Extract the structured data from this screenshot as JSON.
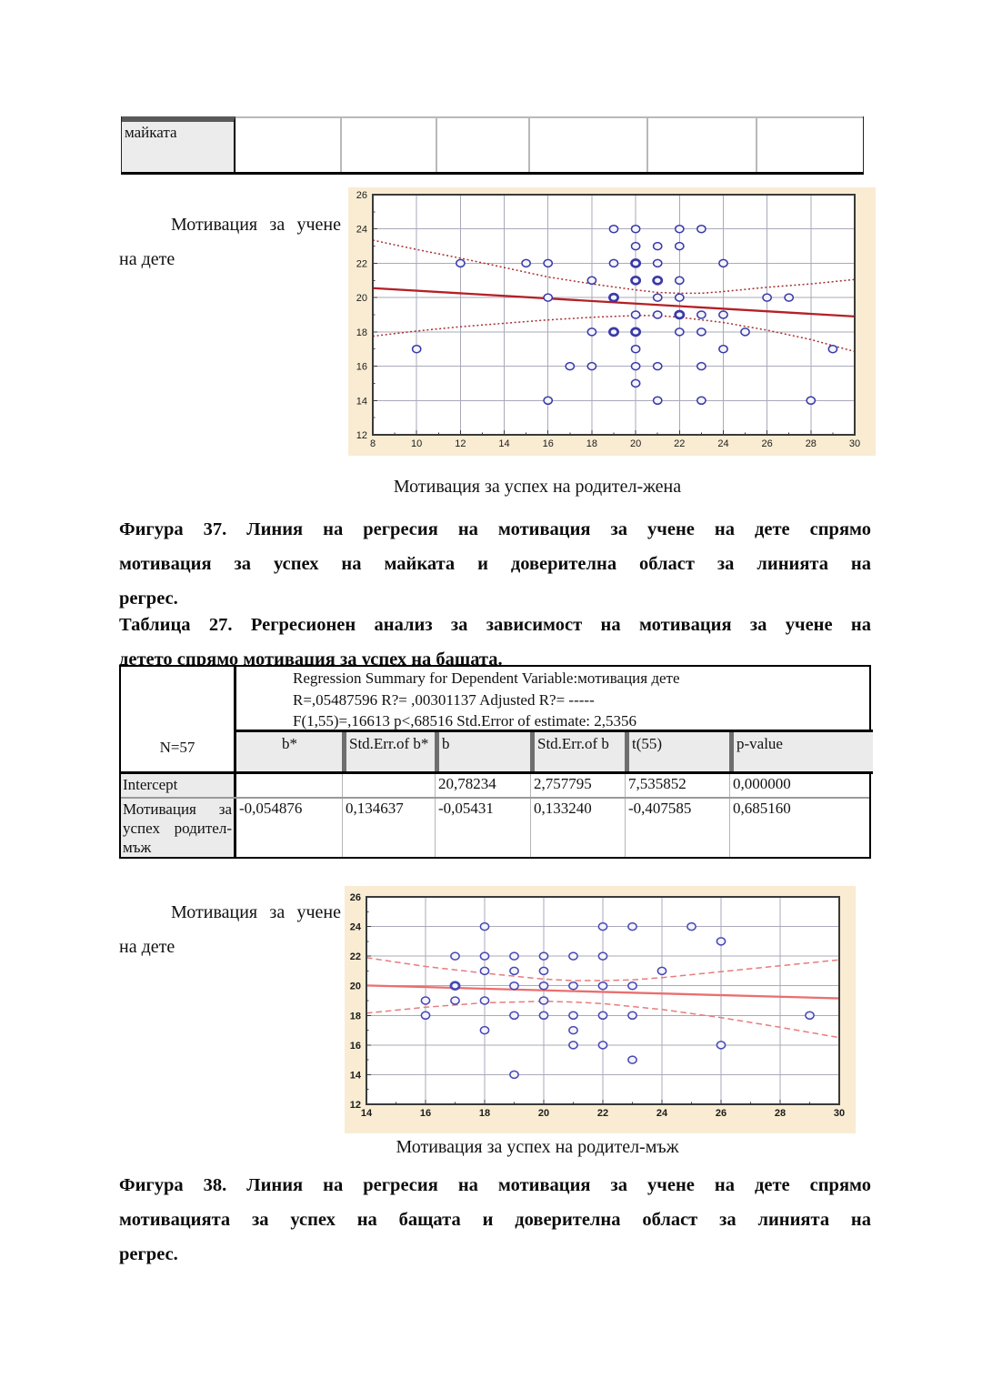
{
  "page": {
    "background": "#ffffff",
    "text_color": "#111111"
  },
  "top_table": {
    "row_label": "майката",
    "empty_cell_count": 6
  },
  "side_label_top": {
    "text": "Мотивация за учене на дете"
  },
  "side_label_bottom": {
    "text": "Мотивация за учене на дете"
  },
  "figure37": {
    "chart_caption": "Мотивация за успех на родител-жена",
    "caption_lines": [
      "Фигура 37. Линия на регресия на мотивация за учене на дете спрямо",
      "мотивация за успех на майката и доверителна област за линията на",
      "регрес."
    ]
  },
  "table27": {
    "caption_lines": [
      "Таблица 27. Регресионен анализ за зависимост на мотивация за учене на",
      "детето спрямо мотивация за успех на бащата."
    ],
    "n_label": "N=57",
    "summary_lines": [
      "Regression Summary for Dependent Variable:мотивация дете",
      "R=,05487596  R?= ,00301137 Adjusted R?= -----",
      "F(1,55)=,16613 p<,68516 Std.Error of estimate: 2,5356"
    ],
    "columns": [
      "b*",
      "Std.Err.of b*",
      "b",
      "Std.Err.of b",
      "t(55)",
      "p-value"
    ],
    "rows": [
      {
        "label": "Intercept",
        "values": [
          "",
          "",
          "20,78234",
          "2,757795",
          "7,535852",
          "0,000000"
        ]
      },
      {
        "label": "Мотивация за успех родител-мъж",
        "values": [
          "-0,054876",
          "0,134637",
          "-0,05431",
          "0,133240",
          "-0,407585",
          "0,685160"
        ]
      }
    ]
  },
  "figure38": {
    "chart_caption": "Мотивация за успех на родител-мъж",
    "caption_lines": [
      "Фигура 38.  Линия на регресия на мотивация за учене на дете спрямо",
      "мотивацията за успех на бащата и доверителна област за линията на",
      "регрес."
    ]
  },
  "chart_data": [
    {
      "type": "scatter",
      "title": "",
      "xlabel": "Мотивация за успех на родител-жена",
      "ylabel": "Мотивация за учене на дете",
      "xlim": [
        8,
        30
      ],
      "ylim": [
        12,
        26
      ],
      "xticks": [
        8,
        10,
        12,
        14,
        16,
        18,
        20,
        22,
        24,
        26,
        28,
        30
      ],
      "yticks": [
        12,
        14,
        16,
        18,
        20,
        22,
        24,
        26
      ],
      "grid": true,
      "legend": "none",
      "points": [
        [
          10,
          17
        ],
        [
          12,
          22
        ],
        [
          15,
          22
        ],
        [
          16,
          22
        ],
        [
          16,
          20
        ],
        [
          16,
          14
        ],
        [
          17,
          16
        ],
        [
          18,
          21
        ],
        [
          18,
          18
        ],
        [
          18,
          16
        ],
        [
          19,
          24
        ],
        [
          19,
          22
        ],
        [
          19,
          20
        ],
        [
          19,
          18
        ],
        [
          20,
          24
        ],
        [
          20,
          23
        ],
        [
          20,
          22
        ],
        [
          20,
          21
        ],
        [
          20,
          19
        ],
        [
          20,
          18
        ],
        [
          20,
          17
        ],
        [
          20,
          16
        ],
        [
          20,
          15
        ],
        [
          21,
          23
        ],
        [
          21,
          22
        ],
        [
          21,
          21
        ],
        [
          21,
          20
        ],
        [
          21,
          19
        ],
        [
          21,
          16
        ],
        [
          21,
          14
        ],
        [
          22,
          24
        ],
        [
          22,
          23
        ],
        [
          22,
          21
        ],
        [
          22,
          20
        ],
        [
          22,
          19
        ],
        [
          22,
          18
        ],
        [
          23,
          24
        ],
        [
          23,
          19
        ],
        [
          23,
          18
        ],
        [
          23,
          16
        ],
        [
          23,
          14
        ],
        [
          24,
          22
        ],
        [
          24,
          19
        ],
        [
          24,
          17
        ],
        [
          25,
          18
        ],
        [
          26,
          20
        ],
        [
          27,
          20
        ],
        [
          28,
          14
        ],
        [
          29,
          17
        ]
      ],
      "bold_points": [
        [
          19,
          20
        ],
        [
          19,
          18
        ],
        [
          20,
          22
        ],
        [
          20,
          21
        ],
        [
          20,
          18
        ],
        [
          21,
          21
        ],
        [
          22,
          19
        ]
      ],
      "regression_line": {
        "x": [
          8,
          30
        ],
        "y": [
          20.55,
          18.9
        ]
      },
      "confidence_upper": [
        [
          8,
          23.35
        ],
        [
          10,
          22.8
        ],
        [
          12,
          22.3
        ],
        [
          14,
          21.75
        ],
        [
          16,
          21.2
        ],
        [
          18,
          20.8
        ],
        [
          20,
          20.45
        ],
        [
          21,
          20.3
        ],
        [
          22,
          20.25
        ],
        [
          23,
          20.25
        ],
        [
          24,
          20.35
        ],
        [
          26,
          20.6
        ],
        [
          28,
          20.8
        ],
        [
          30,
          21.05
        ]
      ],
      "confidence_lower": [
        [
          8,
          17.75
        ],
        [
          10,
          18.05
        ],
        [
          12,
          18.3
        ],
        [
          14,
          18.5
        ],
        [
          16,
          18.7
        ],
        [
          18,
          18.85
        ],
        [
          20,
          18.95
        ],
        [
          21,
          18.95
        ],
        [
          22,
          18.85
        ],
        [
          24,
          18.55
        ],
        [
          26,
          18.1
        ],
        [
          28,
          17.55
        ],
        [
          30,
          16.85
        ]
      ],
      "colors": {
        "background": "#f9ecd2",
        "plot_bg": "#ffffff",
        "grid": "#a9a9bb",
        "frame": "#3a3a3a",
        "marker": "#3939a8",
        "marker_fill": "#f3f3fb",
        "line": "#b42025",
        "band": "#a83030",
        "tick_text": "#1c1c1c"
      },
      "band_dash": "2,2.6",
      "tick_font_weight": "400"
    },
    {
      "type": "scatter",
      "title": "",
      "xlabel": "Мотивация за успех на родител-мъж",
      "ylabel": "Мотивация за учене на дете",
      "xlim": [
        14,
        30
      ],
      "ylim": [
        12,
        26
      ],
      "xticks": [
        14,
        16,
        18,
        20,
        22,
        24,
        26,
        28,
        30
      ],
      "yticks": [
        12,
        14,
        16,
        18,
        20,
        22,
        24,
        26
      ],
      "grid": true,
      "legend": "none",
      "points": [
        [
          16,
          19
        ],
        [
          16,
          18
        ],
        [
          17,
          22
        ],
        [
          17,
          20
        ],
        [
          17,
          19
        ],
        [
          18,
          24
        ],
        [
          18,
          22
        ],
        [
          18,
          21
        ],
        [
          18,
          19
        ],
        [
          18,
          17
        ],
        [
          19,
          22
        ],
        [
          19,
          21
        ],
        [
          19,
          20
        ],
        [
          19,
          18
        ],
        [
          19,
          14
        ],
        [
          20,
          22
        ],
        [
          20,
          21
        ],
        [
          20,
          20
        ],
        [
          20,
          19
        ],
        [
          20,
          18
        ],
        [
          21,
          22
        ],
        [
          21,
          20
        ],
        [
          21,
          18
        ],
        [
          21,
          17
        ],
        [
          21,
          16
        ],
        [
          22,
          24
        ],
        [
          22,
          22
        ],
        [
          22,
          20
        ],
        [
          22,
          18
        ],
        [
          22,
          16
        ],
        [
          23,
          24
        ],
        [
          23,
          20
        ],
        [
          23,
          18
        ],
        [
          23,
          15
        ],
        [
          24,
          21
        ],
        [
          25,
          24
        ],
        [
          26,
          23
        ],
        [
          26,
          16
        ],
        [
          29,
          18
        ]
      ],
      "bold_points": [
        [
          17,
          20
        ]
      ],
      "regression_line": {
        "x": [
          14,
          30
        ],
        "y": [
          20.02,
          19.15
        ]
      },
      "confidence_upper": [
        [
          14,
          21.9
        ],
        [
          16,
          21.3
        ],
        [
          18,
          20.85
        ],
        [
          20,
          20.45
        ],
        [
          21,
          20.35
        ],
        [
          22,
          20.35
        ],
        [
          23,
          20.4
        ],
        [
          24,
          20.55
        ],
        [
          26,
          20.95
        ],
        [
          28,
          21.35
        ],
        [
          30,
          21.75
        ]
      ],
      "confidence_lower": [
        [
          14,
          18.15
        ],
        [
          16,
          18.55
        ],
        [
          18,
          18.85
        ],
        [
          20,
          18.95
        ],
        [
          21,
          18.9
        ],
        [
          22,
          18.8
        ],
        [
          24,
          18.4
        ],
        [
          26,
          17.85
        ],
        [
          28,
          17.2
        ],
        [
          30,
          16.5
        ]
      ],
      "colors": {
        "background": "#f9ecd2",
        "plot_bg": "#ffffff",
        "grid": "#a9a9bb",
        "frame": "#3a3a3a",
        "marker": "#4646b4",
        "marker_fill": "#f3f3fb",
        "line": "#ea6f6f",
        "band": "#e87c7c",
        "tick_text": "#1c1c1c"
      },
      "band_dash": "6.5,4",
      "tick_font_weight": "700"
    }
  ]
}
